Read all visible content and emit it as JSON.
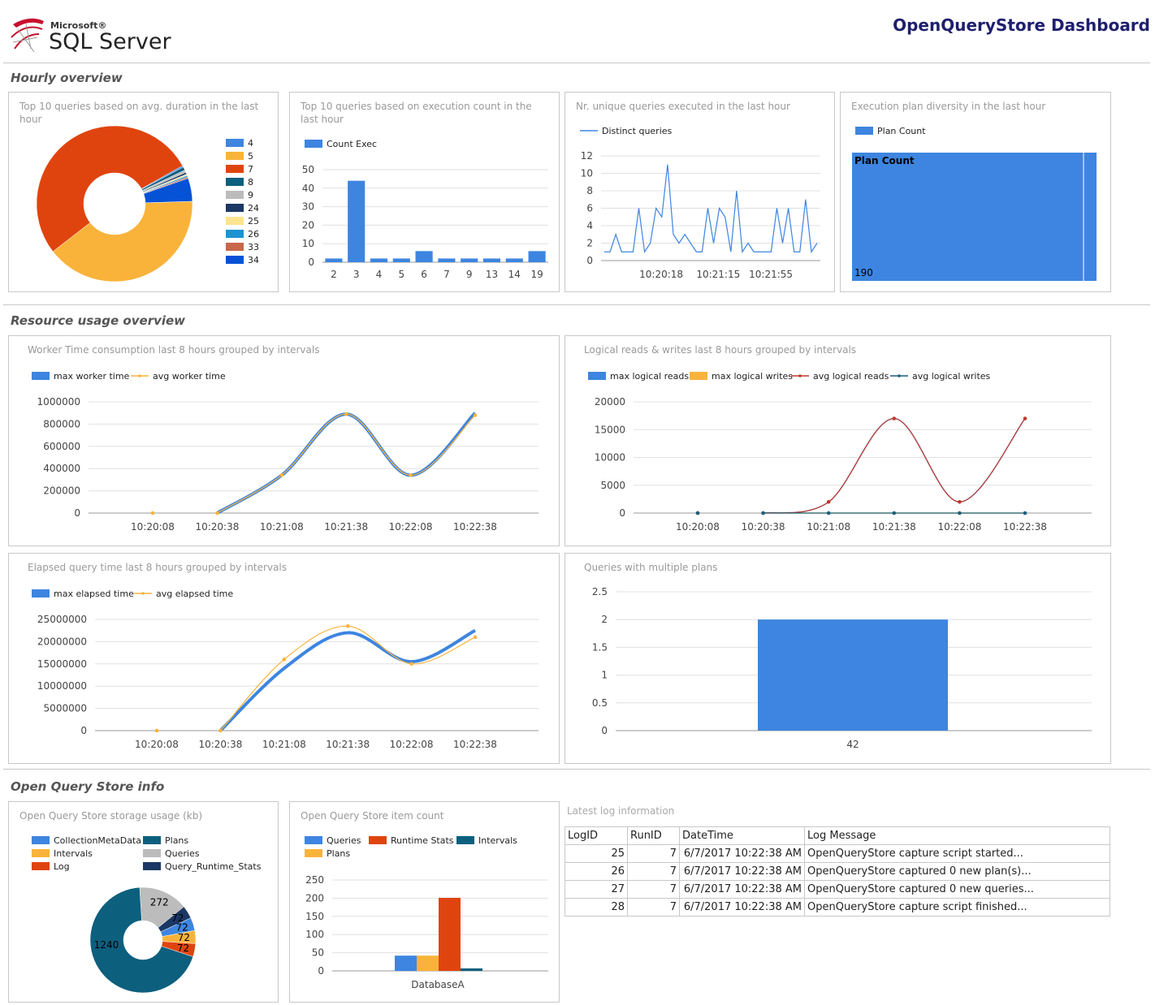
{
  "header": {
    "brand_small": "Microsoft®",
    "brand_main": "SQL Server",
    "logo_icon": "sql-server-logo-icon",
    "title": "OpenQueryStore Dashboard"
  },
  "sections": {
    "hourly": "Hourly overview",
    "resource": "Resource usage overview",
    "info": "Open Query Store info"
  },
  "panels": {
    "p1": "Top 10 queries based on avg. duration in the last hour",
    "p2": "Top 10 queries based on execution count in the last hour",
    "p3": "Nr. unique queries executed in the last hour",
    "p4": "Execution plan diversity in the last hour",
    "p5": "Worker Time consumption last 8 hours grouped by intervals",
    "p6": "Logical reads & writes last 8 hours grouped by intervals",
    "p7": "Elapsed query time last 8 hours grouped by intervals",
    "p8": "Queries with multiple plans",
    "p9": "Open Query Store storage usage (kb)",
    "p10": "Open Query Store item count",
    "log": "Latest log information"
  },
  "chart_data": [
    {
      "id": "avg-duration-donut",
      "type": "pie",
      "donut": true,
      "labels": [
        "4",
        "5",
        "7",
        "8",
        "9",
        "24",
        "25",
        "26",
        "33",
        "34"
      ],
      "values": [
        0.3,
        40.0,
        52.4,
        0.7,
        0.5,
        0.4,
        0.3,
        0.3,
        0.3,
        4.8
      ],
      "colors": [
        "#3d85e0",
        "#f9b33b",
        "#e0440e",
        "#0d5f7e",
        "#bcbcbc",
        "#1b3764",
        "#fde48e",
        "#1e93d3",
        "#c9674a",
        "#0552d6"
      ],
      "legend_position": "right"
    },
    {
      "id": "exec-count-bar",
      "type": "bar",
      "series": [
        {
          "name": "Count Exec",
          "values": [
            2,
            44,
            2,
            2,
            6,
            2,
            2,
            2,
            2,
            6
          ],
          "color": "#3d85e0"
        }
      ],
      "categories": [
        "2",
        "3",
        "4",
        "5",
        "6",
        "7",
        "9",
        "13",
        "14",
        "19"
      ],
      "yticks": [
        0,
        10,
        20,
        30,
        40,
        50
      ],
      "ylim": [
        0,
        50
      ],
      "legend_position": "top"
    },
    {
      "id": "distinct-queries-line",
      "type": "line",
      "series": [
        {
          "name": "Distinct queries",
          "values": [
            1,
            1,
            3,
            1,
            1,
            1,
            6,
            1,
            2,
            6,
            5,
            11,
            3,
            2,
            3,
            2,
            1,
            1,
            6,
            2,
            6,
            5,
            1,
            8,
            1,
            2,
            1,
            1,
            1,
            1,
            6,
            2,
            6,
            1,
            1,
            7,
            1,
            2
          ],
          "color": "#3d85e0"
        }
      ],
      "xtick_labels": [
        "10:20:18",
        "10:21:15",
        "10:21:55"
      ],
      "yticks": [
        0,
        2,
        4,
        6,
        8,
        10,
        12
      ],
      "ylim": [
        0,
        12
      ],
      "legend_position": "top"
    },
    {
      "id": "plan-diversity-treemap",
      "type": "heatmap",
      "series": [
        {
          "name": "Plan Count",
          "values": [
            190
          ],
          "color": "#3d85e0"
        }
      ],
      "header_label": "Plan Count",
      "cell_label": "190",
      "legend_position": "top"
    },
    {
      "id": "worker-time-line",
      "type": "line",
      "categories": [
        "10:20:08",
        "10:20:38",
        "10:21:08",
        "10:21:38",
        "10:22:08",
        "10:22:38"
      ],
      "series": [
        {
          "name": "max worker time",
          "values": [
            0,
            0,
            340000,
            890000,
            340000,
            900000
          ],
          "color": "#3d85e0"
        },
        {
          "name": "avg worker time",
          "values": [
            0,
            0,
            340000,
            890000,
            340000,
            880000
          ],
          "color": "#f9b33b"
        }
      ],
      "yticks": [
        0,
        200000,
        400000,
        600000,
        800000,
        1000000
      ],
      "ylim": [
        0,
        1000000
      ],
      "legend_position": "top"
    },
    {
      "id": "logical-rw-line",
      "type": "line",
      "categories": [
        "10:20:08",
        "10:20:38",
        "10:21:08",
        "10:21:38",
        "10:22:08",
        "10:22:38"
      ],
      "series": [
        {
          "name": "max logical reads",
          "values": [
            0,
            0,
            2000,
            17000,
            2000,
            17000
          ],
          "color": "#3d85e0"
        },
        {
          "name": "max logical writes",
          "values": [
            0,
            0,
            0,
            0,
            0,
            0
          ],
          "color": "#f9b33b"
        },
        {
          "name": "avg logical reads",
          "values": [
            0,
            0,
            2000,
            17000,
            2000,
            17000
          ],
          "color": "#c0392b"
        },
        {
          "name": "avg logical writes",
          "values": [
            0,
            0,
            0,
            0,
            0,
            0
          ],
          "color": "#1b5f7c"
        }
      ],
      "yticks": [
        0,
        5000,
        10000,
        15000,
        20000
      ],
      "ylim": [
        0,
        20000
      ],
      "legend_position": "top"
    },
    {
      "id": "elapsed-time-line",
      "type": "line",
      "categories": [
        "10:20:08",
        "10:20:38",
        "10:21:08",
        "10:21:38",
        "10:22:08",
        "10:22:38"
      ],
      "series": [
        {
          "name": "max elapsed time",
          "values": [
            0,
            0,
            14000000,
            22000000,
            15500000,
            22500000
          ],
          "color": "#3d85e0"
        },
        {
          "name": "avg elapsed time",
          "values": [
            0,
            0,
            16000000,
            23500000,
            15000000,
            21000000
          ],
          "color": "#f9b33b"
        }
      ],
      "yticks": [
        0,
        5000000,
        10000000,
        15000000,
        20000000,
        25000000
      ],
      "ylim": [
        0,
        25000000
      ],
      "legend_position": "top"
    },
    {
      "id": "multi-plan-bar",
      "type": "bar",
      "categories": [
        "42"
      ],
      "series": [
        {
          "name": "",
          "values": [
            2
          ],
          "color": "#3d85e0"
        }
      ],
      "yticks": [
        0,
        0.5,
        1,
        1.5,
        2,
        2.5
      ],
      "ylim": [
        0,
        2.5
      ]
    },
    {
      "id": "storage-donut",
      "type": "pie",
      "donut": true,
      "labels": [
        "CollectionMetaData",
        "Plans",
        "Intervals",
        "Queries",
        "Log",
        "Query_Runtime_Stats"
      ],
      "values": [
        72,
        1240,
        72,
        272,
        72,
        72
      ],
      "slice_order": [
        1,
        3,
        5,
        0,
        2,
        4
      ],
      "colors": [
        "#3d85e0",
        "#0d5f7e",
        "#f9b33b",
        "#bcbcbc",
        "#e0440e",
        "#1b3764"
      ],
      "legend_position": "top"
    },
    {
      "id": "item-count-bar",
      "type": "bar",
      "categories": [
        "DatabaseA"
      ],
      "series": [
        {
          "name": "Queries",
          "values": [
            42
          ],
          "color": "#3d85e0"
        },
        {
          "name": "Plans",
          "values": [
            42
          ],
          "color": "#f9b33b"
        },
        {
          "name": "Runtime Stats",
          "values": [
            201
          ],
          "color": "#e0440e"
        },
        {
          "name": "Intervals",
          "values": [
            7
          ],
          "color": "#0d5f7e"
        }
      ],
      "yticks": [
        0,
        50,
        100,
        150,
        200,
        250
      ],
      "ylim": [
        0,
        250
      ],
      "legend_position": "top"
    }
  ],
  "log_table": {
    "headers": [
      "LogID",
      "RunID",
      "DateTime",
      "Log Message"
    ],
    "rows": [
      [
        "25",
        "7",
        "6/7/2017 10:22:38 AM",
        "OpenQueryStore capture script started..."
      ],
      [
        "26",
        "7",
        "6/7/2017 10:22:38 AM",
        "OpenQueryStore captured 0 new plan(s)..."
      ],
      [
        "27",
        "7",
        "6/7/2017 10:22:38 AM",
        "OpenQueryStore captured 0 new queries..."
      ],
      [
        "28",
        "7",
        "6/7/2017 10:22:38 AM",
        "OpenQueryStore capture script finished..."
      ]
    ]
  }
}
